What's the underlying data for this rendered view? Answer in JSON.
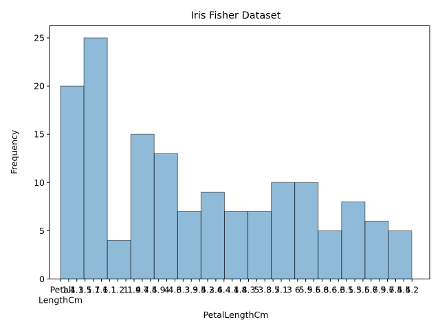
{
  "chart_data": {
    "type": "bar",
    "title": "Iris Fisher Dataset",
    "xlabel": "PetalLengthCm",
    "ylabel": "Frequency",
    "ylim": [
      0,
      26.25
    ],
    "yticks": [
      "0",
      "5",
      "10",
      "15",
      "20",
      "25"
    ],
    "first_xtick_label": [
      "Petal",
      "LengthCm"
    ],
    "xtick_labels": [
      "1.4",
      "1.3",
      "1.5",
      "1.7",
      "1.6",
      "1.1",
      "1.2",
      "1",
      "1.9",
      "4.7",
      "4.5",
      "4.9",
      "4",
      "4.6",
      "3.3",
      "3.9",
      "3.5",
      "4.2",
      "3.6",
      "4.4",
      "4.1",
      "4.8",
      "4.3",
      "5",
      "3.8",
      "3.7",
      "5.1",
      "3",
      "6",
      "5.9",
      "5.6",
      "5.8",
      "6.6",
      "6.3",
      "6.1",
      "5.3",
      "5.5",
      "6.7",
      "6.9",
      "5.7",
      "6.4",
      "5.4",
      "5.2"
    ],
    "bins": 15,
    "values": [
      20,
      25,
      4,
      15,
      13,
      7,
      9,
      7,
      7,
      10,
      10,
      5,
      8,
      6,
      5
    ],
    "bar_color": "#1f77b4",
    "bar_alpha": 0.5,
    "edge_color": "#000000",
    "grid": false
  }
}
